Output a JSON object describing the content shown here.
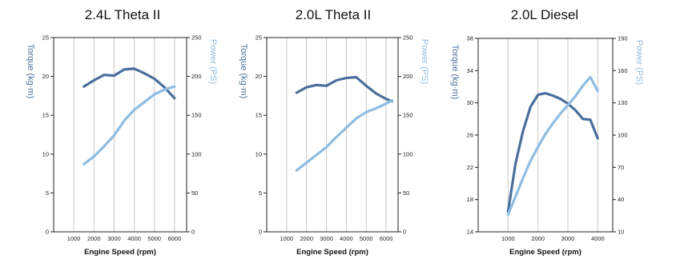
{
  "colors": {
    "torque": "#4a6f9c",
    "power": "#8fbde3",
    "grid": "#c8c8c8",
    "axis": "#222222"
  },
  "chart_data": [
    {
      "type": "line",
      "title": "2.4L Theta II",
      "xlabel": "Engine Speed (rpm)",
      "ylabel_left": "Torque (kg·m)",
      "ylabel_right": "Power (PS)",
      "xlim": [
        0,
        6600
      ],
      "ylim_left": [
        0,
        25
      ],
      "ylim_right": [
        0,
        250
      ],
      "x_ticks": [
        "1000",
        "2000",
        "3000",
        "4000",
        "5000",
        "6000"
      ],
      "x_tick_values": [
        1000,
        2000,
        3000,
        4000,
        5000,
        6000
      ],
      "y_ticks_left": [
        "0",
        "5",
        "10",
        "15",
        "20",
        "25"
      ],
      "y_tick_values_left": [
        0,
        5,
        10,
        15,
        20,
        25
      ],
      "y_ticks_right": [
        "0",
        "50",
        "100",
        "150",
        "200",
        "250"
      ],
      "y_tick_values_right": [
        0,
        50,
        100,
        150,
        200,
        250
      ],
      "series": [
        {
          "axis": "left",
          "color": "#4a6f9c",
          "points": [
            [
              1500,
              18.7
            ],
            [
              2000,
              19.5
            ],
            [
              2500,
              20.2
            ],
            [
              3000,
              20.1
            ],
            [
              3500,
              20.9
            ],
            [
              4000,
              21.0
            ],
            [
              4500,
              20.4
            ],
            [
              5000,
              19.7
            ],
            [
              5500,
              18.6
            ],
            [
              6000,
              17.2
            ]
          ]
        },
        {
          "axis": "right",
          "color": "#8fbde3",
          "points": [
            [
              1500,
              87
            ],
            [
              2000,
              97
            ],
            [
              2500,
              110
            ],
            [
              3000,
              124
            ],
            [
              3500,
              143
            ],
            [
              4000,
              157
            ],
            [
              4500,
              167
            ],
            [
              5000,
              177
            ],
            [
              5500,
              183
            ],
            [
              6000,
              187
            ]
          ]
        }
      ]
    },
    {
      "type": "line",
      "title": "2.0L Theta II",
      "xlabel": "Engine Speed (rpm)",
      "ylabel_left": "Torque (kg·m)",
      "ylabel_right": "Power (PS)",
      "xlim": [
        0,
        6600
      ],
      "ylim_left": [
        0,
        25
      ],
      "ylim_right": [
        0,
        250
      ],
      "x_ticks": [
        "1000",
        "2000",
        "3000",
        "4000",
        "5000",
        "6000"
      ],
      "x_tick_values": [
        1000,
        2000,
        3000,
        4000,
        5000,
        6000
      ],
      "y_ticks_left": [
        "0",
        "5",
        "10",
        "15",
        "20",
        "25"
      ],
      "y_tick_values_left": [
        0,
        5,
        10,
        15,
        20,
        25
      ],
      "y_ticks_right": [
        "0",
        "50",
        "100",
        "150",
        "200",
        "250"
      ],
      "y_tick_values_right": [
        0,
        50,
        100,
        150,
        200,
        250
      ],
      "series": [
        {
          "axis": "left",
          "color": "#4a6f9c",
          "points": [
            [
              1500,
              17.9
            ],
            [
              2000,
              18.6
            ],
            [
              2500,
              18.9
            ],
            [
              3000,
              18.8
            ],
            [
              3500,
              19.5
            ],
            [
              4000,
              19.8
            ],
            [
              4500,
              19.9
            ],
            [
              5000,
              18.8
            ],
            [
              5500,
              17.8
            ],
            [
              6000,
              17.1
            ],
            [
              6300,
              16.8
            ]
          ]
        },
        {
          "axis": "right",
          "color": "#8fbde3",
          "points": [
            [
              1500,
              79
            ],
            [
              2000,
              89
            ],
            [
              2500,
              99
            ],
            [
              3000,
              109
            ],
            [
              3500,
              122
            ],
            [
              4000,
              134
            ],
            [
              4500,
              146
            ],
            [
              5000,
              154
            ],
            [
              5500,
              159
            ],
            [
              6000,
              165
            ],
            [
              6300,
              169
            ]
          ]
        }
      ]
    },
    {
      "type": "line",
      "title": "2.0L Diesel",
      "xlabel": "Engine Speed (rpm)",
      "ylabel_left": "Torque (kg·m)",
      "ylabel_right": "Power (PS)",
      "xlim": [
        0,
        4500
      ],
      "ylim_left": [
        14,
        38
      ],
      "ylim_right": [
        10,
        190
      ],
      "x_ticks": [
        "1000",
        "2000",
        "3000",
        "4000"
      ],
      "x_tick_values": [
        1000,
        2000,
        3000,
        4000
      ],
      "y_ticks_left": [
        "14",
        "18",
        "22",
        "26",
        "30",
        "34",
        "38"
      ],
      "y_tick_values_left": [
        14,
        18,
        22,
        26,
        30,
        34,
        38
      ],
      "y_ticks_right": [
        "10",
        "40",
        "70",
        "100",
        "130",
        "160",
        "190"
      ],
      "y_tick_values_right": [
        10,
        40,
        70,
        100,
        130,
        160,
        190
      ],
      "series": [
        {
          "axis": "left",
          "color": "#4a6f9c",
          "points": [
            [
              1000,
              16.5
            ],
            [
              1250,
              22.5
            ],
            [
              1500,
              26.5
            ],
            [
              1750,
              29.5
            ],
            [
              2000,
              31.0
            ],
            [
              2250,
              31.2
            ],
            [
              2500,
              30.9
            ],
            [
              2750,
              30.5
            ],
            [
              3000,
              29.9
            ],
            [
              3250,
              29.1
            ],
            [
              3500,
              28.0
            ],
            [
              3750,
              27.9
            ],
            [
              4000,
              25.6
            ]
          ]
        },
        {
          "axis": "right",
          "color": "#8fbde3",
          "points": [
            [
              1000,
              26
            ],
            [
              1250,
              43
            ],
            [
              1500,
              60
            ],
            [
              1750,
              76
            ],
            [
              2000,
              89
            ],
            [
              2250,
              101
            ],
            [
              2500,
              111
            ],
            [
              2750,
              120
            ],
            [
              3000,
              128
            ],
            [
              3250,
              136
            ],
            [
              3500,
              146
            ],
            [
              3750,
              154
            ],
            [
              4000,
              141
            ]
          ]
        }
      ]
    }
  ]
}
